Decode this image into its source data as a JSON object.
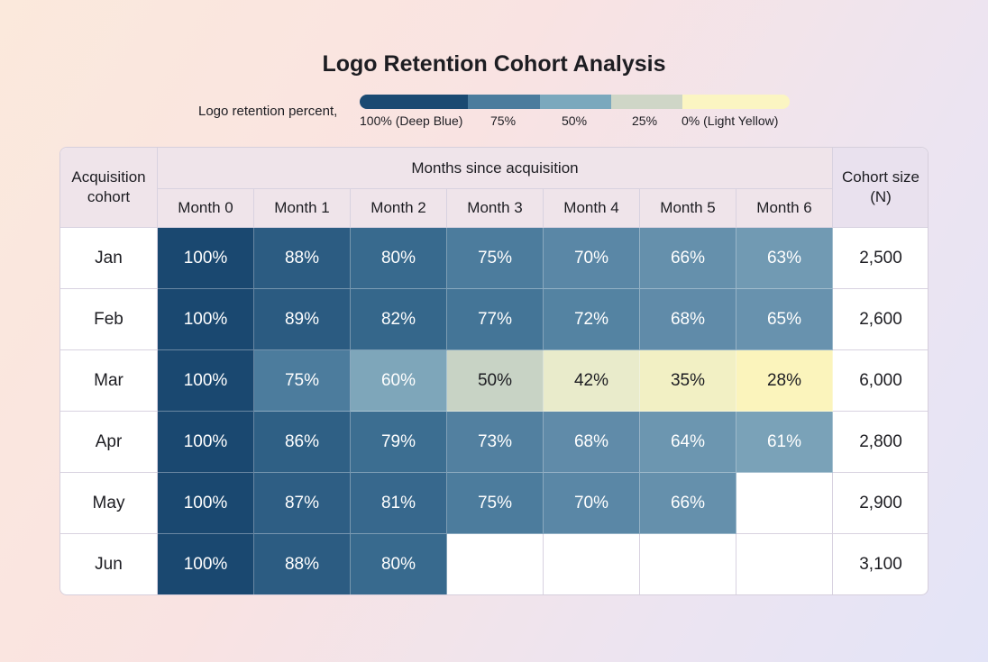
{
  "chart_data": {
    "type": "heatmap",
    "title": "Logo Retention Cohort Analysis",
    "legend": {
      "label": "Logo retention percent,",
      "ticks": [
        "100% (Deep Blue)",
        "75%",
        "50%",
        "25%",
        "0% (Light Yellow)"
      ],
      "colors": [
        "#1b4a72",
        "#4b7c9d",
        "#7ba8bd",
        "#cfd6c7",
        "#fbf5c2"
      ]
    },
    "row_header": "Acquisition cohort",
    "column_group": "Months since acquisition",
    "columns": [
      "Month 0",
      "Month 1",
      "Month 2",
      "Month 3",
      "Month 4",
      "Month 5",
      "Month 6"
    ],
    "size_header": "Cohort size (N)",
    "rows": [
      {
        "cohort": "Jan",
        "values": [
          100,
          88,
          80,
          75,
          70,
          66,
          63
        ],
        "size": "2,500"
      },
      {
        "cohort": "Feb",
        "values": [
          100,
          89,
          82,
          77,
          72,
          68,
          65
        ],
        "size": "2,600"
      },
      {
        "cohort": "Mar",
        "values": [
          100,
          75,
          60,
          50,
          42,
          35,
          28
        ],
        "size": "6,000"
      },
      {
        "cohort": "Apr",
        "values": [
          100,
          86,
          79,
          73,
          68,
          64,
          61
        ],
        "size": "2,800"
      },
      {
        "cohort": "May",
        "values": [
          100,
          87,
          81,
          75,
          70,
          66,
          null
        ],
        "size": "2,900"
      },
      {
        "cohort": "Jun",
        "values": [
          100,
          88,
          80,
          null,
          null,
          null,
          null
        ],
        "size": "3,100"
      }
    ]
  }
}
